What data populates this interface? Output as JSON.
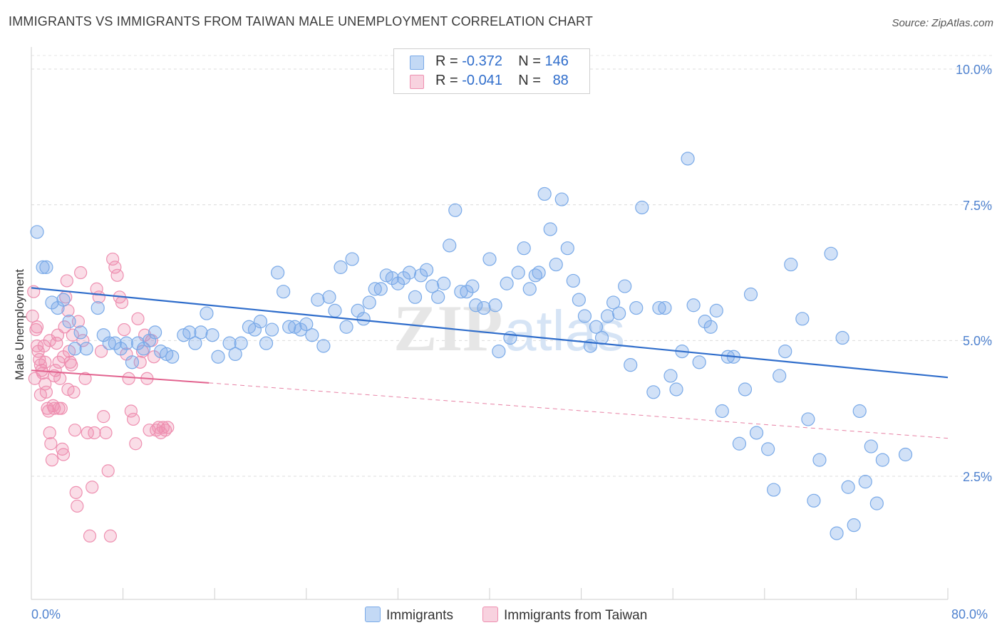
{
  "title": "IMMIGRANTS VS IMMIGRANTS FROM TAIWAN MALE UNEMPLOYMENT CORRELATION CHART",
  "source": "Source: ZipAtlas.com",
  "watermark": {
    "zip": "ZIP",
    "atlas": "atlas"
  },
  "colors": {
    "blue": "#7aaae8",
    "blue_fill": "rgba(122,170,232,0.35)",
    "blue_line": "#2f6dcb",
    "pink": "#ee8fb0",
    "pink_fill": "rgba(238,143,176,0.30)",
    "pink_line": "#e2638f"
  },
  "legend": {
    "rows": [
      {
        "r_label": "R =",
        "r_value": "-0.372",
        "n_label": "N =",
        "n_value": "146",
        "color": "#7aaae8"
      },
      {
        "r_label": "R =",
        "r_value": "-0.041",
        "n_label": "N =",
        "n_value": "88",
        "color": "#ee8fb0"
      }
    ]
  },
  "bottom_legend": {
    "series1": "Immigrants",
    "series2": "Immigrants from Taiwan"
  },
  "chart_data": {
    "type": "scatter",
    "ylabel": "Male Unemployment",
    "xlim": [
      0,
      80
    ],
    "ylim": [
      0,
      10.5
    ],
    "y_ticks": [
      {
        "label": "2.5%",
        "value": 2.5
      },
      {
        "label": "5.0%",
        "value": 5.0
      },
      {
        "label": "7.5%",
        "value": 7.5
      },
      {
        "label": "10.0%",
        "value": 10.0
      }
    ],
    "x_tick_labels": {
      "min": "0.0%",
      "max": "80.0%"
    },
    "grid": true,
    "legend_position": "top-center",
    "series": [
      {
        "name": "Immigrants",
        "color": "#7aaae8",
        "trend": {
          "x0": 0,
          "y0": 5.97,
          "x1": 80,
          "y1": 4.32
        },
        "points": [
          [
            0.5,
            7.0
          ],
          [
            1.0,
            6.35
          ],
          [
            1.3,
            6.35
          ],
          [
            1.8,
            5.7
          ],
          [
            2.3,
            5.6
          ],
          [
            2.8,
            5.75
          ],
          [
            3.3,
            5.35
          ],
          [
            4.3,
            5.15
          ],
          [
            3.8,
            4.85
          ],
          [
            4.8,
            4.85
          ],
          [
            5.8,
            5.6
          ],
          [
            6.3,
            5.1
          ],
          [
            6.8,
            4.95
          ],
          [
            7.3,
            4.95
          ],
          [
            7.8,
            4.85
          ],
          [
            8.3,
            4.95
          ],
          [
            8.8,
            4.6
          ],
          [
            9.3,
            4.95
          ],
          [
            9.8,
            4.85
          ],
          [
            10.3,
            5.0
          ],
          [
            10.8,
            5.15
          ],
          [
            11.3,
            4.8
          ],
          [
            11.8,
            4.75
          ],
          [
            12.3,
            4.7
          ],
          [
            13.3,
            5.1
          ],
          [
            13.8,
            5.15
          ],
          [
            14.3,
            4.95
          ],
          [
            14.8,
            5.15
          ],
          [
            15.3,
            5.5
          ],
          [
            15.8,
            5.1
          ],
          [
            16.3,
            4.7
          ],
          [
            17.3,
            4.95
          ],
          [
            17.8,
            4.75
          ],
          [
            18.3,
            4.95
          ],
          [
            19.0,
            5.25
          ],
          [
            19.5,
            5.2
          ],
          [
            20.0,
            5.35
          ],
          [
            20.5,
            4.95
          ],
          [
            21.0,
            5.2
          ],
          [
            21.5,
            6.25
          ],
          [
            22.0,
            5.9
          ],
          [
            22.5,
            5.25
          ],
          [
            23.0,
            5.25
          ],
          [
            23.5,
            5.2
          ],
          [
            24.0,
            5.3
          ],
          [
            24.5,
            5.1
          ],
          [
            25.0,
            5.75
          ],
          [
            25.5,
            4.9
          ],
          [
            26.0,
            5.8
          ],
          [
            26.5,
            5.55
          ],
          [
            27.0,
            6.35
          ],
          [
            27.5,
            5.25
          ],
          [
            28.0,
            6.5
          ],
          [
            28.5,
            5.55
          ],
          [
            29.0,
            5.4
          ],
          [
            29.5,
            5.7
          ],
          [
            30.0,
            5.95
          ],
          [
            30.5,
            5.95
          ],
          [
            31.0,
            6.2
          ],
          [
            31.5,
            6.15
          ],
          [
            32.0,
            6.05
          ],
          [
            32.5,
            6.15
          ],
          [
            33.0,
            6.25
          ],
          [
            33.5,
            5.8
          ],
          [
            34.0,
            6.2
          ],
          [
            34.5,
            6.3
          ],
          [
            35.0,
            6.0
          ],
          [
            35.5,
            5.8
          ],
          [
            36.0,
            6.05
          ],
          [
            36.5,
            6.75
          ],
          [
            37.0,
            7.4
          ],
          [
            37.5,
            5.9
          ],
          [
            38.0,
            5.9
          ],
          [
            38.5,
            6.0
          ],
          [
            38.8,
            5.65
          ],
          [
            39.5,
            5.6
          ],
          [
            40.0,
            6.5
          ],
          [
            40.5,
            5.65
          ],
          [
            40.8,
            4.8
          ],
          [
            41.5,
            6.05
          ],
          [
            41.8,
            5.05
          ],
          [
            42.5,
            6.25
          ],
          [
            43.0,
            6.7
          ],
          [
            43.5,
            5.95
          ],
          [
            44.0,
            6.2
          ],
          [
            44.3,
            6.25
          ],
          [
            44.8,
            7.7
          ],
          [
            45.3,
            7.05
          ],
          [
            45.8,
            6.4
          ],
          [
            46.3,
            7.6
          ],
          [
            46.8,
            6.7
          ],
          [
            47.3,
            6.1
          ],
          [
            47.8,
            5.75
          ],
          [
            48.3,
            5.45
          ],
          [
            48.8,
            4.9
          ],
          [
            49.3,
            5.25
          ],
          [
            49.8,
            5.05
          ],
          [
            50.3,
            5.45
          ],
          [
            50.8,
            5.7
          ],
          [
            51.3,
            5.5
          ],
          [
            51.8,
            6.0
          ],
          [
            52.3,
            4.55
          ],
          [
            52.8,
            5.6
          ],
          [
            53.3,
            7.45
          ],
          [
            54.3,
            4.05
          ],
          [
            54.8,
            5.6
          ],
          [
            55.3,
            5.6
          ],
          [
            55.8,
            4.35
          ],
          [
            56.3,
            4.1
          ],
          [
            56.8,
            4.8
          ],
          [
            57.3,
            8.35
          ],
          [
            57.8,
            5.65
          ],
          [
            58.3,
            4.6
          ],
          [
            58.8,
            5.35
          ],
          [
            59.3,
            5.25
          ],
          [
            59.8,
            5.55
          ],
          [
            60.3,
            3.7
          ],
          [
            60.8,
            4.7
          ],
          [
            61.3,
            4.7
          ],
          [
            61.8,
            3.1
          ],
          [
            62.3,
            4.1
          ],
          [
            62.8,
            5.85
          ],
          [
            63.3,
            3.3
          ],
          [
            64.3,
            3.0
          ],
          [
            64.8,
            2.25
          ],
          [
            65.3,
            4.35
          ],
          [
            65.8,
            4.8
          ],
          [
            66.3,
            6.4
          ],
          [
            67.3,
            5.4
          ],
          [
            67.8,
            3.55
          ],
          [
            68.3,
            2.05
          ],
          [
            68.8,
            2.8
          ],
          [
            69.8,
            6.6
          ],
          [
            70.8,
            5.05
          ],
          [
            70.3,
            1.45
          ],
          [
            71.3,
            2.3
          ],
          [
            71.8,
            1.6
          ],
          [
            72.3,
            3.7
          ],
          [
            72.8,
            2.4
          ],
          [
            73.3,
            3.05
          ],
          [
            73.8,
            2.0
          ],
          [
            74.3,
            2.8
          ],
          [
            76.3,
            2.9
          ]
        ]
      },
      {
        "name": "Immigrants from Taiwan",
        "color": "#ee8fb0",
        "trend": {
          "x0": 0,
          "y0": 4.45,
          "x1": 15.5,
          "y1": 4.22
        },
        "trend_dashed": {
          "x0": 15.5,
          "y0": 4.22,
          "x1": 80,
          "y1": 3.2
        },
        "points": [
          [
            0.1,
            5.45
          ],
          [
            0.2,
            5.9
          ],
          [
            0.4,
            5.2
          ],
          [
            0.5,
            4.9
          ],
          [
            0.6,
            4.8
          ],
          [
            0.7,
            4.65
          ],
          [
            0.8,
            4.55
          ],
          [
            0.9,
            4.45
          ],
          [
            1.0,
            4.4
          ],
          [
            1.1,
            4.9
          ],
          [
            1.2,
            4.2
          ],
          [
            1.3,
            4.05
          ],
          [
            1.4,
            3.75
          ],
          [
            1.5,
            3.7
          ],
          [
            1.6,
            3.3
          ],
          [
            1.7,
            3.1
          ],
          [
            1.8,
            2.8
          ],
          [
            1.9,
            3.8
          ],
          [
            2.0,
            3.75
          ],
          [
            2.1,
            4.45
          ],
          [
            2.2,
            4.95
          ],
          [
            2.3,
            5.1
          ],
          [
            2.4,
            4.6
          ],
          [
            2.5,
            4.3
          ],
          [
            2.6,
            3.75
          ],
          [
            2.7,
            3.0
          ],
          [
            2.8,
            2.9
          ],
          [
            2.9,
            5.25
          ],
          [
            3.0,
            5.8
          ],
          [
            3.1,
            6.1
          ],
          [
            3.2,
            5.55
          ],
          [
            3.3,
            4.8
          ],
          [
            3.4,
            4.6
          ],
          [
            3.5,
            4.55
          ],
          [
            3.6,
            5.1
          ],
          [
            3.7,
            4.05
          ],
          [
            3.8,
            3.35
          ],
          [
            3.9,
            2.2
          ],
          [
            4.0,
            1.95
          ],
          [
            4.1,
            5.35
          ],
          [
            4.3,
            6.25
          ],
          [
            4.5,
            5.0
          ],
          [
            4.7,
            4.3
          ],
          [
            4.9,
            3.3
          ],
          [
            5.1,
            1.4
          ],
          [
            5.3,
            2.3
          ],
          [
            5.5,
            3.3
          ],
          [
            5.7,
            5.95
          ],
          [
            5.9,
            5.8
          ],
          [
            6.1,
            4.8
          ],
          [
            6.3,
            3.6
          ],
          [
            6.5,
            3.3
          ],
          [
            6.7,
            2.6
          ],
          [
            6.9,
            1.4
          ],
          [
            7.1,
            6.5
          ],
          [
            7.3,
            6.35
          ],
          [
            7.5,
            6.2
          ],
          [
            7.7,
            5.8
          ],
          [
            7.9,
            5.7
          ],
          [
            8.1,
            5.2
          ],
          [
            8.3,
            4.75
          ],
          [
            8.5,
            4.3
          ],
          [
            8.7,
            3.7
          ],
          [
            8.9,
            3.55
          ],
          [
            9.1,
            3.1
          ],
          [
            9.3,
            5.4
          ],
          [
            9.5,
            4.6
          ],
          [
            9.7,
            4.8
          ],
          [
            9.9,
            5.1
          ],
          [
            10.1,
            4.3
          ],
          [
            10.3,
            3.35
          ],
          [
            10.5,
            5.0
          ],
          [
            10.7,
            4.7
          ],
          [
            10.9,
            3.35
          ],
          [
            11.1,
            3.4
          ],
          [
            11.3,
            3.3
          ],
          [
            11.5,
            3.4
          ],
          [
            11.7,
            3.35
          ],
          [
            11.9,
            3.4
          ],
          [
            0.3,
            4.3
          ],
          [
            0.5,
            5.25
          ],
          [
            0.8,
            4.0
          ],
          [
            1.2,
            4.6
          ],
          [
            1.6,
            5.0
          ],
          [
            2.0,
            4.35
          ],
          [
            2.4,
            3.75
          ],
          [
            2.8,
            4.7
          ],
          [
            3.2,
            4.1
          ]
        ]
      }
    ]
  }
}
